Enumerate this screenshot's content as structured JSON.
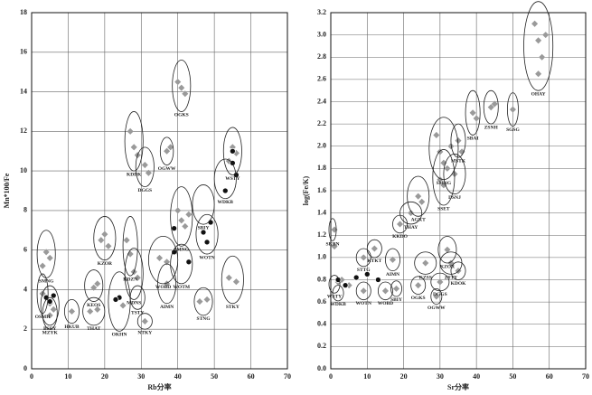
{
  "chart_data": [
    {
      "type": "scatter",
      "x_label": "Rb分率",
      "y_label": "Mn*100/Fe",
      "xlim": [
        0,
        70
      ],
      "xticks": [
        0,
        10,
        20,
        30,
        40,
        50,
        60,
        70
      ],
      "ylim": [
        0,
        18
      ],
      "yticks": [
        0,
        2,
        4,
        6,
        8,
        10,
        12,
        14,
        16,
        18
      ],
      "grid": true,
      "series": [
        {
          "color": "#9a9a9a",
          "x": [
            40,
            41,
            42,
            27,
            28,
            29,
            37,
            38,
            31,
            32,
            55,
            56,
            54,
            40,
            41,
            42,
            43,
            19,
            20,
            21,
            26,
            27,
            4,
            5,
            3,
            35,
            37,
            28,
            29,
            37,
            17,
            18,
            54,
            56,
            46,
            48,
            23,
            25,
            16,
            18,
            11,
            5,
            6,
            3,
            31,
            5
          ],
          "values": [
            14.5,
            14.2,
            13.9,
            12,
            11.2,
            10.8,
            11,
            11.2,
            10.3,
            9.9,
            11.2,
            10.9,
            10.5,
            8,
            7.5,
            7.2,
            7.8,
            6.5,
            6.8,
            6.2,
            6.5,
            5.8,
            5.9,
            5.6,
            5.2,
            5.6,
            5.4,
            4.9,
            4.6,
            4.3,
            4.1,
            4.3,
            4.6,
            4.4,
            3.4,
            3.5,
            3.5,
            3.2,
            2.9,
            3,
            2.9,
            3.3,
            3,
            3.8,
            2.4,
            2.7
          ]
        },
        {
          "color": "#111111",
          "x": [
            55,
            55,
            56,
            53,
            49,
            47,
            48,
            39,
            43,
            39,
            24,
            23,
            6,
            5,
            4
          ],
          "values": [
            11,
            10.4,
            9.8,
            9,
            7.4,
            6.9,
            6.4,
            7.1,
            5.4,
            5.9,
            3.6,
            3.5,
            3.7,
            3.4,
            3.6
          ]
        }
      ],
      "groups": [
        {
          "label": "OGKS",
          "cx": 41,
          "cy": 14.3,
          "rx": 2.5,
          "ry": 1.3
        },
        {
          "label": "KDDK",
          "cx": 28,
          "cy": 11.5,
          "rx": 2.5,
          "ry": 1.5
        },
        {
          "label": "OGWW",
          "cx": 37,
          "cy": 11,
          "rx": 1.8,
          "ry": 0.7
        },
        {
          "label": "DGGS",
          "cx": 31,
          "cy": 10.2,
          "rx": 2.5,
          "ry": 1
        },
        {
          "label": "WSTY",
          "cx": 55,
          "cy": 11,
          "rx": 2.5,
          "ry": 1.2
        },
        {
          "label": "WDKB",
          "cx": 53,
          "cy": 9.6,
          "rx": 3,
          "ry": 1
        },
        {
          "label": "SBIY",
          "cx": 47,
          "cy": 8.3,
          "rx": 3,
          "ry": 1
        },
        {
          "label": "SMNG",
          "cx": 41,
          "cy": 7.7,
          "rx": 3,
          "ry": 1.5
        },
        {
          "label": "WOTN",
          "cx": 48,
          "cy": 6.8,
          "rx": 3,
          "ry": 1
        },
        {
          "label": "KZOR",
          "cx": 20,
          "cy": 6.6,
          "rx": 3,
          "ry": 1.1
        },
        {
          "label": "KDZN",
          "cx": 27,
          "cy": 6.2,
          "rx": 2,
          "ry": 1.5
        },
        {
          "label": "SMNG",
          "cx": 4,
          "cy": 5.8,
          "rx": 2.5,
          "ry": 1.2
        },
        {
          "label": "WOBD",
          "cx": 36,
          "cy": 5.5,
          "rx": 4,
          "ry": 1.2
        },
        {
          "label": "WOTM",
          "cx": 41,
          "cy": 5.3,
          "rx": 3,
          "ry": 1
        },
        {
          "label": "MDNS",
          "cx": 28,
          "cy": 4.8,
          "rx": 2.5,
          "ry": 1.3
        },
        {
          "label": "AIMN",
          "cx": 37,
          "cy": 4.3,
          "rx": 2.5,
          "ry": 1
        },
        {
          "label": "KEOS",
          "cx": 17,
          "cy": 4.2,
          "rx": 2.5,
          "ry": 0.8
        },
        {
          "label": "STKY",
          "cx": 55,
          "cy": 4.5,
          "rx": 3,
          "ry": 1.2
        },
        {
          "label": "STNG",
          "cx": 47,
          "cy": 3.4,
          "rx": 2.5,
          "ry": 0.7
        },
        {
          "label": "OKHN",
          "cx": 24,
          "cy": 3.4,
          "rx": 3,
          "ry": 1.5
        },
        {
          "label": "TSTY",
          "cx": 29,
          "cy": 3.6,
          "rx": 2,
          "ry": 0.6
        },
        {
          "label": "THAT",
          "cx": 17,
          "cy": 2.9,
          "rx": 3,
          "ry": 0.7
        },
        {
          "label": "HKUB",
          "cx": 11,
          "cy": 2.9,
          "rx": 2,
          "ry": 0.6
        },
        {
          "label": "BSEY",
          "cx": 5,
          "cy": 3.2,
          "rx": 2.5,
          "ry": 1
        },
        {
          "label": "OSMH",
          "cx": 3,
          "cy": 3.8,
          "rx": 1.5,
          "ry": 1
        },
        {
          "label": "NTKY",
          "cx": 31,
          "cy": 2.4,
          "rx": 2,
          "ry": 0.4
        },
        {
          "label": "MZYK",
          "cx": 5,
          "cy": 2.8,
          "rx": 2,
          "ry": 0.8
        }
      ]
    },
    {
      "type": "scatter",
      "x_label": "Sr分率",
      "y_label": "log(Fe/K)",
      "xlim": [
        0,
        70
      ],
      "xticks": [
        0,
        10,
        20,
        30,
        40,
        50,
        60,
        70
      ],
      "ylim": [
        0,
        3.2
      ],
      "yticks": [
        {
          "value": 0,
          "label": "0.0"
        },
        0.2,
        0.4,
        0.6,
        0.8,
        {
          "value": 1,
          "label": "1.0"
        },
        1.2,
        1.4,
        1.6,
        1.8,
        {
          "value": 2,
          "label": "2.0"
        },
        2.2,
        2.4,
        2.6,
        2.8,
        {
          "value": 3,
          "label": "3.0"
        },
        3.2
      ],
      "grid": true,
      "series": [
        {
          "color": "#9a9a9a",
          "x": [
            56,
            57,
            58,
            57,
            59,
            50,
            44,
            45,
            39,
            40,
            29,
            30,
            31,
            32,
            33,
            30,
            35,
            36,
            34,
            31,
            24,
            25,
            22,
            19,
            1,
            1,
            12,
            9,
            17,
            32,
            26,
            33,
            35,
            30,
            24,
            29,
            18,
            15,
            9,
            2,
            3,
            5
          ],
          "values": [
            3.1,
            2.95,
            2.8,
            2.65,
            3.0,
            2.33,
            2.35,
            2.38,
            2.3,
            2.25,
            2.1,
            1.95,
            1.85,
            1.8,
            2.0,
            1.7,
            2.05,
            1.95,
            1.75,
            1.65,
            1.55,
            1.5,
            1.4,
            1.3,
            1.25,
            1.1,
            1.08,
            1.0,
            0.98,
            1.07,
            0.95,
            0.95,
            0.88,
            0.78,
            0.75,
            0.65,
            0.72,
            0.7,
            0.7,
            0.78,
            0.8,
            0.75
          ]
        },
        {
          "color": "#111111",
          "x": [
            2,
            4,
            7,
            10,
            13
          ],
          "values": [
            0.8,
            0.75,
            0.82,
            0.85,
            0.8
          ]
        }
      ],
      "groups": [
        {
          "label": "OHAY",
          "cx": 57,
          "cy": 2.9,
          "rx": 4,
          "ry": 0.4
        },
        {
          "label": "SGSG",
          "cx": 50,
          "cy": 2.33,
          "rx": 1.5,
          "ry": 0.15
        },
        {
          "label": "ZSNH",
          "cx": 44,
          "cy": 2.35,
          "rx": 2,
          "ry": 0.15
        },
        {
          "label": "SBAI",
          "cx": 39,
          "cy": 2.3,
          "rx": 2,
          "ry": 0.2
        },
        {
          "label": "SMNG",
          "cx": 31,
          "cy": 1.98,
          "rx": 4,
          "ry": 0.28
        },
        {
          "label": "MSTK",
          "cx": 35,
          "cy": 2.05,
          "rx": 2,
          "ry": 0.15
        },
        {
          "label": "DSNJ",
          "cx": 34,
          "cy": 1.75,
          "rx": 3,
          "ry": 0.18
        },
        {
          "label": "SSET",
          "cx": 31,
          "cy": 1.72,
          "rx": 3,
          "ry": 0.25
        },
        {
          "label": "AGKT",
          "cx": 24,
          "cy": 1.55,
          "rx": 3,
          "ry": 0.18
        },
        {
          "label": "THAY",
          "cx": 22,
          "cy": 1.4,
          "rx": 3,
          "ry": 0.1
        },
        {
          "label": "KKDO",
          "cx": 19,
          "cy": 1.3,
          "rx": 2,
          "ry": 0.08
        },
        {
          "label": "SKBN",
          "cx": 0.5,
          "cy": 1.25,
          "rx": 1,
          "ry": 0.1
        },
        {
          "label": "KTKT",
          "cx": 12,
          "cy": 1.08,
          "rx": 2,
          "ry": 0.08
        },
        {
          "label": "STTG",
          "cx": 9,
          "cy": 1.0,
          "rx": 2,
          "ry": 0.08
        },
        {
          "label": "AIMN",
          "cx": 17,
          "cy": 0.98,
          "rx": 2,
          "ry": 0.1
        },
        {
          "label": "KZOR",
          "cx": 32,
          "cy": 1.07,
          "rx": 2.5,
          "ry": 0.12
        },
        {
          "label": "KZSS",
          "cx": 26,
          "cy": 0.95,
          "rx": 3,
          "ry": 0.1
        },
        {
          "label": "ZSTY",
          "cx": 33,
          "cy": 0.95,
          "rx": 3,
          "ry": 0.1
        },
        {
          "label": "KDOK",
          "cx": 35,
          "cy": 0.88,
          "rx": 2,
          "ry": 0.08
        },
        {
          "label": "DGGS",
          "cx": 30,
          "cy": 0.78,
          "rx": 2.5,
          "ry": 0.08
        },
        {
          "label": "OGKS",
          "cx": 24,
          "cy": 0.75,
          "rx": 2,
          "ry": 0.08
        },
        {
          "label": "OGWW",
          "cx": 29,
          "cy": 0.65,
          "rx": 1.5,
          "ry": 0.07
        },
        {
          "label": "SBIY",
          "cx": 18,
          "cy": 0.72,
          "rx": 1.5,
          "ry": 0.07
        },
        {
          "label": "WOBD",
          "cx": 15,
          "cy": 0.7,
          "rx": 2,
          "ry": 0.08
        },
        {
          "label": "WOTN",
          "cx": 9,
          "cy": 0.7,
          "rx": 2,
          "ry": 0.08
        },
        {
          "label": "WSTY",
          "cx": 1,
          "cy": 0.76,
          "rx": 1.5,
          "ry": 0.08
        },
        {
          "label": "WDKB",
          "cx": 2,
          "cy": 0.68,
          "rx": 1.5,
          "ry": 0.07
        }
      ]
    }
  ]
}
